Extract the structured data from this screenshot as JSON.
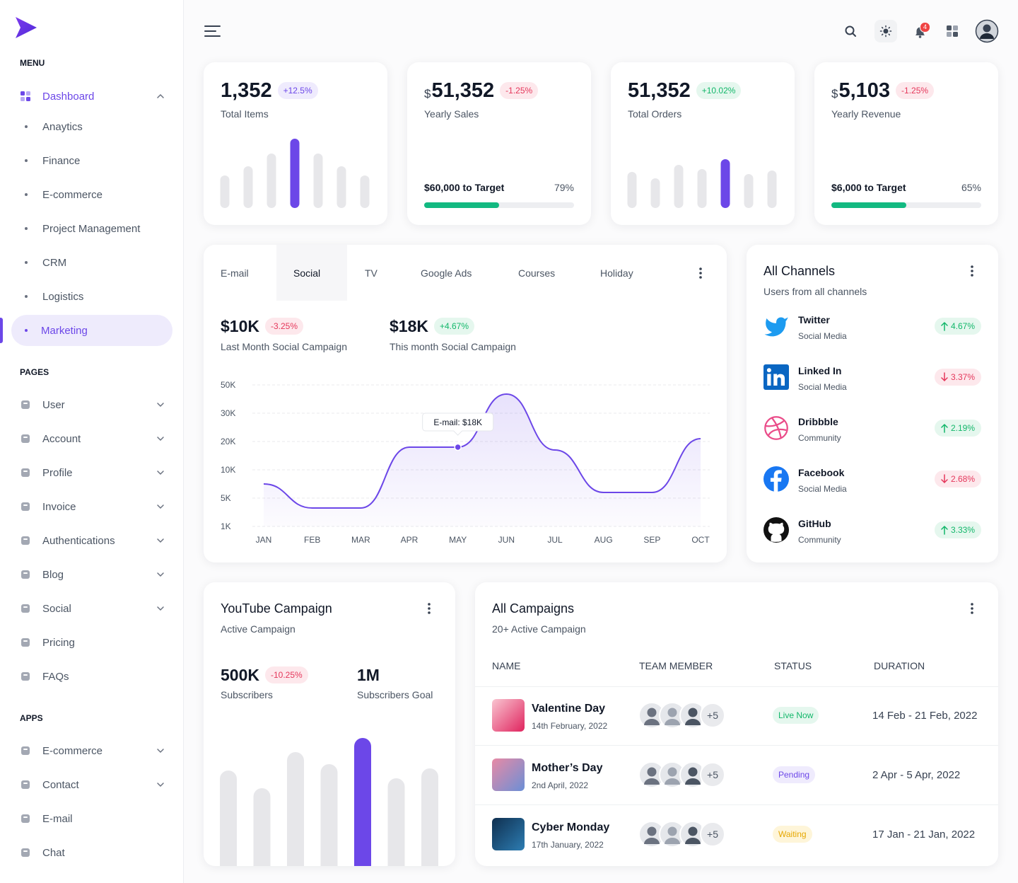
{
  "sidebar": {
    "menu_title": "MENU",
    "dashboard": "Dashboard",
    "dashboard_items": [
      "Anaytics",
      "Finance",
      "E-commerce",
      "Project Management",
      "CRM",
      "Logistics",
      "Marketing"
    ],
    "active_item": 6,
    "pages_title": "PAGES",
    "pages": [
      {
        "label": "User",
        "chevron": true
      },
      {
        "label": "Account",
        "chevron": true
      },
      {
        "label": "Profile",
        "chevron": true
      },
      {
        "label": "Invoice",
        "chevron": true
      },
      {
        "label": "Authentications",
        "chevron": true
      },
      {
        "label": "Blog",
        "chevron": true
      },
      {
        "label": "Social",
        "chevron": true
      },
      {
        "label": "Pricing",
        "chevron": false
      },
      {
        "label": "FAQs",
        "chevron": false
      }
    ],
    "apps_title": "APPS",
    "apps": [
      {
        "label": "E-commerce",
        "chevron": true
      },
      {
        "label": "Contact",
        "chevron": true
      },
      {
        "label": "E-mail",
        "chevron": false
      },
      {
        "label": "Chat",
        "chevron": false
      }
    ]
  },
  "header": {
    "notifications": "4"
  },
  "stats": [
    {
      "value": "1,352",
      "change": "+12.5%",
      "badge": "purple",
      "label": "Total Items"
    },
    {
      "prefix": "$",
      "value": "51,352",
      "change": "-1.25%",
      "badge": "red",
      "label": "Yearly Sales",
      "target": "$60,000 to Target",
      "percent": "79%",
      "progress": 50
    },
    {
      "value": "51,352",
      "change": "+10.02%",
      "badge": "green",
      "label": "Total Orders"
    },
    {
      "prefix": "$",
      "value": "5,103",
      "change": "-1.25%",
      "badge": "red",
      "label": "Yearly Revenue",
      "target": "$6,000 to Target",
      "percent": "65%",
      "progress": 50
    }
  ],
  "campaign": {
    "tabs": [
      "E-mail",
      "Social",
      "TV",
      "Google Ads",
      "Courses",
      "Holiday"
    ],
    "active_tab": 1,
    "stats": [
      {
        "value": "$10K",
        "change": "-3.25%",
        "badge": "red",
        "label": "Last Month Social Campaign"
      },
      {
        "value": "$18K",
        "change": "+4.67%",
        "badge": "green",
        "label": "This month Social Campaign"
      }
    ]
  },
  "channels": {
    "title": "All Channels",
    "subtitle": "Users from all channels",
    "items": [
      {
        "name": "Twitter",
        "kind": "Social Media",
        "change": "4.67%",
        "trend": "up"
      },
      {
        "name": "Linked In",
        "kind": "Social Media",
        "change": "3.37%",
        "trend": "down"
      },
      {
        "name": "Dribbble",
        "kind": "Community",
        "change": "2.19%",
        "trend": "up"
      },
      {
        "name": "Facebook",
        "kind": "Social Media",
        "change": "2.68%",
        "trend": "down"
      },
      {
        "name": "GitHub",
        "kind": "Community",
        "change": "3.33%",
        "trend": "up"
      }
    ]
  },
  "youtube": {
    "title": "YouTube Campaign",
    "subtitle": "Active Campaign",
    "subscribers": "500K",
    "change": "-10.25%",
    "badge": "red",
    "subscribers_label": "Subscribers",
    "goal": "1M",
    "goal_label": "Subscribers Goal"
  },
  "campaigns": {
    "title": "All Campaigns",
    "subtitle": "20+ Active Campaign",
    "columns": [
      "NAME",
      "TEAM MEMBER",
      "STATUS",
      "DURATION"
    ],
    "rows": [
      {
        "name": "Valentine Day",
        "date": "14th February, 2022",
        "extra": "+5",
        "status": "Live Now",
        "status_color": "green",
        "duration": "14 Feb - 21 Feb, 2022"
      },
      {
        "name": "Mother’s Day",
        "date": "2nd April, 2022",
        "extra": "+5",
        "status": "Pending",
        "status_color": "purple",
        "duration": "2 Apr - 5 Apr, 2022"
      },
      {
        "name": "Cyber Monday",
        "date": "17th January, 2022",
        "extra": "+5",
        "status": "Waiting",
        "status_color": "yellow",
        "duration": "17 Jan - 21 Jan, 2022"
      }
    ]
  },
  "chart_data": [
    {
      "type": "bar",
      "categories": [
        null,
        null,
        null,
        null,
        null,
        null,
        null
      ],
      "values": [
        46,
        59,
        77,
        98,
        77,
        59,
        46
      ],
      "colors": [
        "#e7e7ea",
        "#e7e7ea",
        "#e7e7ea",
        "#6c47e8",
        "#e7e7ea",
        "#e7e7ea",
        "#e7e7ea"
      ],
      "ylim": [
        0,
        100
      ]
    },
    {
      "type": "bar",
      "categories": [
        null,
        null,
        null,
        null,
        null,
        null,
        null
      ],
      "values": [
        51,
        42,
        61,
        55,
        69,
        48,
        53
      ],
      "colors": [
        "#e7e7ea",
        "#e7e7ea",
        "#e7e7ea",
        "#e7e7ea",
        "#6c47e8",
        "#e7e7ea",
        "#e7e7ea"
      ],
      "ylim": [
        0,
        100
      ]
    },
    {
      "type": "line",
      "categories": [
        "JAN",
        "FEB",
        "MAR",
        "APR",
        "MAY",
        "JUN",
        "JUL",
        "AUG",
        "SEP",
        "OCT"
      ],
      "values": [
        7500,
        3600,
        3600,
        18000,
        18000,
        43500,
        17000,
        6000,
        6000,
        21000
      ],
      "color": "#6c47e8",
      "ylim": [
        1000,
        50000
      ],
      "yticks": [
        {
          "value": 1000,
          "label": "1K"
        },
        {
          "value": 5000,
          "label": "5K"
        },
        {
          "value": 10000,
          "label": "10K"
        },
        {
          "value": 20000,
          "label": "20K"
        },
        {
          "value": 30000,
          "label": "30K"
        },
        {
          "value": 50000,
          "label": "50K"
        }
      ],
      "grid": true,
      "annotation": {
        "text": "E-mail: $18K",
        "index": 4
      }
    },
    {
      "type": "bar",
      "categories": [
        null,
        null,
        null,
        null,
        null,
        null,
        null
      ],
      "values": [
        135,
        110,
        161,
        144,
        181,
        124,
        138
      ],
      "colors": [
        "#e7e7ea",
        "#e7e7ea",
        "#e7e7ea",
        "#e7e7ea",
        "#6c47e8",
        "#e7e7ea",
        "#e7e7ea"
      ],
      "ylim": [
        0,
        200
      ]
    }
  ]
}
